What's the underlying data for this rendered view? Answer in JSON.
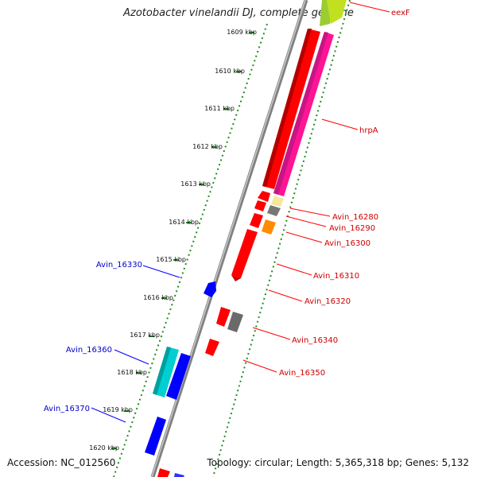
{
  "title": "Azotobacter vinelandii DJ, complete genome",
  "accession": "Accession: NC_012560",
  "summary": "Topology: circular; Length: 5,365,318 bp; Genes: 5,132",
  "ticks": [
    "1609 kbp",
    "1610 kbp",
    "1611 kbp",
    "1612 kbp",
    "1613 kbp",
    "1614 kbp",
    "1615 kbp",
    "1616 kbp",
    "1617 kbp",
    "1618 kbp",
    "1619 kbp",
    "1620 kbp"
  ],
  "genes_right": [
    "eexF",
    "hrpA",
    "Avin_16280",
    "Avin_16290",
    "Avin_16300",
    "Avin_16310",
    "Avin_16320",
    "Avin_16340",
    "Avin_16350"
  ],
  "genes_left": [
    "Avin_16330",
    "Avin_16360",
    "Avin_16370"
  ],
  "colors": {
    "forward": "#ff0000",
    "reverse": "#0000ff",
    "tick_green": "#228b22",
    "backbone": "#888888",
    "label_red": "#cc0000",
    "label_blue": "#0000cc"
  }
}
